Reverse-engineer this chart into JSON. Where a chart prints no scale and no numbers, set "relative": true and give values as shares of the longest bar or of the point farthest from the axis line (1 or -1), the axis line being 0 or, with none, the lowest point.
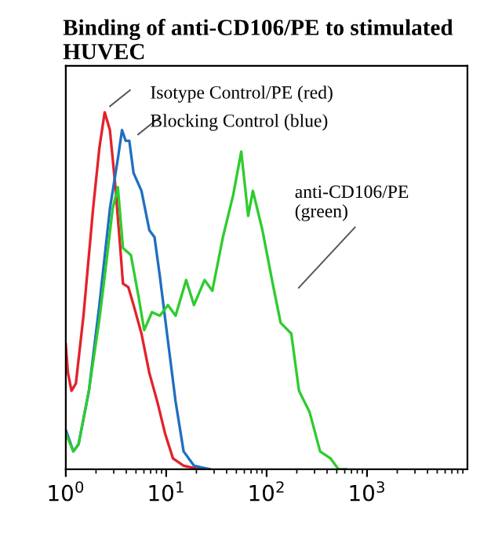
{
  "chart_data": {
    "type": "line",
    "title": "Binding of anti-CD106/PE to stimulated HUVEC",
    "relative": true,
    "log": "x",
    "xlim": [
      1,
      10000
    ],
    "xticks": [
      {
        "value": 1,
        "label": "10$^{0}$"
      },
      {
        "value": 10,
        "label": "10$^{1}$"
      },
      {
        "value": 100,
        "label": "10$^{2}$"
      },
      {
        "value": 1000,
        "label": "10$^{3}$"
      }
    ],
    "tick_labels": "x",
    "grid": false,
    "legend": false,
    "annotations": [
      "Isotype Control/PE (red)",
      "Blocking Control (blue)",
      "anti-CD106/PE\n(green)"
    ],
    "series": [
      {
        "color": "#e3222b",
        "x": [
          1,
          1.05,
          1.14,
          1.26,
          1.5,
          1.87,
          2.16,
          2.44,
          2.75,
          3.1,
          3.51,
          3.71,
          4.2,
          4.73,
          5.67,
          6.79,
          8.14,
          9.75,
          11.7,
          14.9,
          21.4
        ],
        "values": [
          0.35,
          0.27,
          0.22,
          0.24,
          0.43,
          0.73,
          0.9,
          1.0,
          0.95,
          0.8,
          0.61,
          0.52,
          0.51,
          0.46,
          0.38,
          0.27,
          0.19,
          0.1,
          0.03,
          0.01,
          0
        ]
      },
      {
        "color": "#1f6fc2",
        "x": [
          1,
          1.19,
          1.34,
          1.7,
          2.16,
          2.75,
          3.3,
          3.63,
          3.95,
          4.29,
          4.73,
          5.67,
          6.79,
          7.65,
          8.65,
          10.4,
          12.4,
          14.9,
          18.9,
          27.1
        ],
        "values": [
          0.11,
          0.05,
          0.07,
          0.22,
          0.46,
          0.73,
          0.87,
          0.95,
          0.92,
          0.92,
          0.83,
          0.78,
          0.67,
          0.65,
          0.54,
          0.36,
          0.19,
          0.05,
          0.01,
          0
        ]
      },
      {
        "color": "#2ecc2e",
        "x": [
          1,
          1.19,
          1.34,
          1.7,
          2.16,
          2.44,
          2.93,
          3.3,
          3.71,
          4.45,
          5.33,
          6.03,
          7.22,
          8.65,
          10.4,
          12.4,
          15.8,
          18.9,
          24.1,
          28.8,
          36.7,
          46.6,
          55.9,
          65.5,
          73.0,
          90.8,
          115,
          138,
          176,
          210,
          268,
          341,
          434,
          520,
          622
        ],
        "values": [
          0.1,
          0.05,
          0.07,
          0.22,
          0.42,
          0.54,
          0.73,
          0.79,
          0.62,
          0.6,
          0.48,
          0.39,
          0.44,
          0.43,
          0.46,
          0.43,
          0.53,
          0.46,
          0.53,
          0.5,
          0.65,
          0.77,
          0.89,
          0.71,
          0.78,
          0.67,
          0.52,
          0.41,
          0.38,
          0.22,
          0.16,
          0.05,
          0.03,
          0,
          0
        ]
      }
    ]
  }
}
